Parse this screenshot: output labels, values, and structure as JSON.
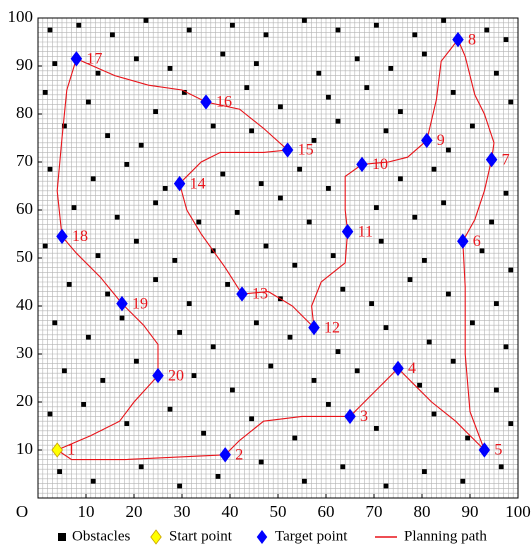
{
  "chart_data": {
    "type": "gridmap",
    "xlim": [
      0,
      100
    ],
    "ylim": [
      0,
      100
    ],
    "xticks": [
      {
        "value": 0,
        "label": "O"
      },
      10,
      20,
      30,
      40,
      50,
      60,
      70,
      80,
      90,
      100
    ],
    "yticks": [
      10,
      20,
      30,
      40,
      50,
      60,
      70,
      80,
      90,
      100
    ],
    "obstacles": {
      "name": "Obstacles",
      "color": "#000000",
      "cells": [
        [
          2,
          97
        ],
        [
          8,
          98
        ],
        [
          15,
          96
        ],
        [
          22,
          99
        ],
        [
          31,
          97
        ],
        [
          40,
          98
        ],
        [
          47,
          96
        ],
        [
          55,
          99
        ],
        [
          62,
          97
        ],
        [
          70,
          98
        ],
        [
          78,
          96
        ],
        [
          84,
          99
        ],
        [
          93,
          97
        ],
        [
          97,
          95
        ],
        [
          3,
          90
        ],
        [
          12,
          88
        ],
        [
          20,
          91
        ],
        [
          27,
          89
        ],
        [
          38,
          92
        ],
        [
          45,
          90
        ],
        [
          58,
          88
        ],
        [
          66,
          91
        ],
        [
          73,
          89
        ],
        [
          80,
          92
        ],
        [
          95,
          88
        ],
        [
          1,
          84
        ],
        [
          10,
          82
        ],
        [
          24,
          80
        ],
        [
          30,
          84
        ],
        [
          43,
          85
        ],
        [
          50,
          81
        ],
        [
          60,
          83
        ],
        [
          68,
          85
        ],
        [
          75,
          80
        ],
        [
          86,
          84
        ],
        [
          98,
          82
        ],
        [
          5,
          77
        ],
        [
          14,
          75
        ],
        [
          21,
          73
        ],
        [
          36,
          77
        ],
        [
          44,
          76
        ],
        [
          57,
          74
        ],
        [
          62,
          78
        ],
        [
          72,
          76
        ],
        [
          85,
          72
        ],
        [
          90,
          77
        ],
        [
          2,
          68
        ],
        [
          11,
          66
        ],
        [
          18,
          69
        ],
        [
          26,
          64
        ],
        [
          38,
          67
        ],
        [
          46,
          65
        ],
        [
          54,
          68
        ],
        [
          60,
          64
        ],
        [
          75,
          66
        ],
        [
          82,
          68
        ],
        [
          97,
          63
        ],
        [
          7,
          60
        ],
        [
          16,
          58
        ],
        [
          24,
          61
        ],
        [
          33,
          57
        ],
        [
          41,
          59
        ],
        [
          50,
          62
        ],
        [
          56,
          57
        ],
        [
          70,
          60
        ],
        [
          78,
          58
        ],
        [
          84,
          61
        ],
        [
          94,
          57
        ],
        [
          1,
          52
        ],
        [
          12,
          50
        ],
        [
          20,
          53
        ],
        [
          28,
          49
        ],
        [
          36,
          51
        ],
        [
          47,
          52
        ],
        [
          53,
          48
        ],
        [
          61,
          50
        ],
        [
          71,
          53
        ],
        [
          80,
          49
        ],
        [
          92,
          51
        ],
        [
          98,
          47
        ],
        [
          6,
          44
        ],
        [
          14,
          42
        ],
        [
          24,
          45
        ],
        [
          31,
          40
        ],
        [
          39,
          44
        ],
        [
          50,
          41
        ],
        [
          63,
          43
        ],
        [
          69,
          40
        ],
        [
          77,
          45
        ],
        [
          85,
          42
        ],
        [
          95,
          40
        ],
        [
          3,
          36
        ],
        [
          10,
          33
        ],
        [
          17,
          37
        ],
        [
          29,
          34
        ],
        [
          36,
          31
        ],
        [
          45,
          36
        ],
        [
          52,
          33
        ],
        [
          62,
          30
        ],
        [
          72,
          35
        ],
        [
          81,
          32
        ],
        [
          90,
          36
        ],
        [
          97,
          31
        ],
        [
          5,
          26
        ],
        [
          13,
          24
        ],
        [
          20,
          28
        ],
        [
          32,
          25
        ],
        [
          40,
          22
        ],
        [
          48,
          27
        ],
        [
          57,
          24
        ],
        [
          66,
          26
        ],
        [
          79,
          23
        ],
        [
          86,
          28
        ],
        [
          95,
          22
        ],
        [
          2,
          17
        ],
        [
          9,
          19
        ],
        [
          18,
          15
        ],
        [
          27,
          18
        ],
        [
          34,
          13
        ],
        [
          44,
          16
        ],
        [
          53,
          12
        ],
        [
          60,
          19
        ],
        [
          70,
          14
        ],
        [
          82,
          17
        ],
        [
          89,
          12
        ],
        [
          98,
          15
        ],
        [
          4,
          5
        ],
        [
          11,
          3
        ],
        [
          21,
          6
        ],
        [
          29,
          2
        ],
        [
          37,
          4
        ],
        [
          46,
          7
        ],
        [
          55,
          3
        ],
        [
          63,
          6
        ],
        [
          72,
          2
        ],
        [
          80,
          5
        ],
        [
          88,
          3
        ],
        [
          96,
          6
        ]
      ]
    },
    "series": [
      {
        "name": "Start point",
        "color": "#ffff00",
        "points": [
          {
            "x": 4,
            "y": 10,
            "label": "1"
          }
        ]
      },
      {
        "name": "Target point",
        "color": "#0000ff",
        "points": [
          {
            "x": 39,
            "y": 9,
            "label": "2"
          },
          {
            "x": 65,
            "y": 17,
            "label": "3"
          },
          {
            "x": 75,
            "y": 27,
            "label": "4"
          },
          {
            "x": 93,
            "y": 10,
            "label": "5"
          },
          {
            "x": 88.5,
            "y": 53.5,
            "label": "6"
          },
          {
            "x": 94.5,
            "y": 70.5,
            "label": "7"
          },
          {
            "x": 87.5,
            "y": 95.5,
            "label": "8"
          },
          {
            "x": 81,
            "y": 74.5,
            "label": "9"
          },
          {
            "x": 67.5,
            "y": 69.5,
            "label": "10"
          },
          {
            "x": 64.5,
            "y": 55.5,
            "label": "11"
          },
          {
            "x": 57.5,
            "y": 35.5,
            "label": "12"
          },
          {
            "x": 42.5,
            "y": 42.5,
            "label": "13"
          },
          {
            "x": 29.5,
            "y": 65.5,
            "label": "14"
          },
          {
            "x": 52,
            "y": 72.5,
            "label": "15"
          },
          {
            "x": 35,
            "y": 82.5,
            "label": "16"
          },
          {
            "x": 8,
            "y": 91.5,
            "label": "17"
          },
          {
            "x": 5,
            "y": 54.5,
            "label": "18"
          },
          {
            "x": 17.5,
            "y": 40.5,
            "label": "19"
          },
          {
            "x": 25,
            "y": 25.5,
            "label": "20"
          }
        ]
      }
    ],
    "path": {
      "name": "Planning path",
      "color": "#e8141a",
      "x": [
        4,
        7,
        18,
        39,
        42,
        47,
        55,
        65,
        68,
        72,
        75,
        78,
        82,
        87,
        93,
        90,
        89,
        89,
        88.5,
        91,
        93,
        94.5,
        95,
        93,
        91,
        89,
        87.5,
        84,
        83,
        81,
        77,
        73,
        67.5,
        64,
        64,
        64.5,
        64,
        59,
        57,
        57.5,
        53,
        48,
        42.5,
        39,
        34,
        31,
        29.5,
        34,
        38,
        47,
        52,
        47,
        42,
        35,
        30,
        23,
        16,
        8,
        6,
        5,
        4,
        5,
        8,
        13,
        17.5,
        22,
        25,
        25,
        20,
        17,
        11,
        4
      ],
      "y": [
        10,
        8,
        8,
        9,
        12,
        16,
        17,
        17,
        20,
        24,
        27,
        24,
        20,
        16,
        10,
        18,
        30,
        44,
        53.5,
        58,
        64,
        70.5,
        74,
        80,
        84,
        92,
        95.5,
        91,
        83,
        74.5,
        71,
        70,
        69.5,
        67,
        60,
        55.5,
        49,
        45,
        40,
        35.5,
        40,
        43,
        42.5,
        48,
        55,
        60,
        65.5,
        70,
        72,
        72,
        72.5,
        77,
        81,
        82.5,
        85,
        86,
        88,
        91.5,
        85,
        75,
        64,
        54.5,
        51,
        46,
        40.5,
        36,
        32,
        25.5,
        20,
        16,
        13,
        10
      ]
    }
  }
}
